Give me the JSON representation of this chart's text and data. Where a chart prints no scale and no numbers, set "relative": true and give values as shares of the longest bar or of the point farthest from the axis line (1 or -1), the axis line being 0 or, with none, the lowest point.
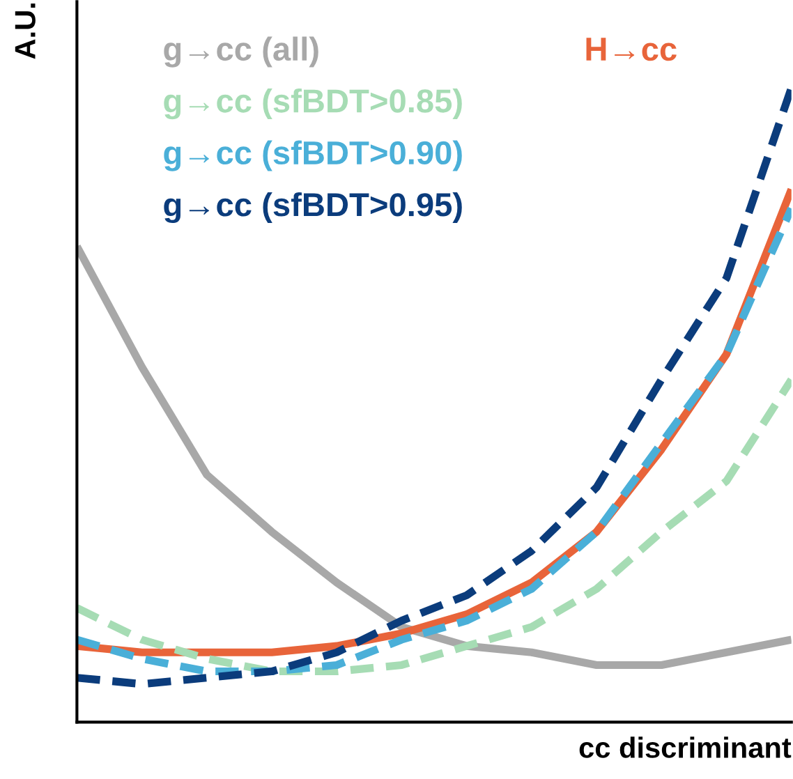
{
  "chart_data": {
    "type": "line",
    "relative": true,
    "xlabel": "cc discriminant",
    "ylabel": "A.U.",
    "categories": [
      null,
      null,
      null,
      null,
      null,
      null,
      null,
      null,
      null,
      null,
      null,
      null
    ],
    "series": [
      {
        "name": "g→cc (all)",
        "color": "#a8a8a8",
        "line_style": "solid",
        "values": [
          0.75,
          0.56,
          0.39,
          0.3,
          0.22,
          0.15,
          0.12,
          0.11,
          0.09,
          0.09,
          0.11,
          0.13
        ]
      },
      {
        "name": "H→cc",
        "color": "#e8643a",
        "line_style": "solid",
        "values": [
          0.12,
          0.11,
          0.11,
          0.11,
          0.12,
          0.14,
          0.17,
          0.22,
          0.3,
          0.43,
          0.58,
          0.84
        ]
      },
      {
        "name": "g→cc (sfBDT>0.85)",
        "color": "#a6dcb4",
        "line_style": "dashed",
        "values": [
          0.18,
          0.13,
          0.1,
          0.08,
          0.08,
          0.09,
          0.12,
          0.15,
          0.21,
          0.3,
          0.38,
          0.54
        ]
      },
      {
        "name": "g→cc (sfBDT>0.90)",
        "color": "#4aafd8",
        "line_style": "dashed",
        "values": [
          0.13,
          0.1,
          0.08,
          0.08,
          0.09,
          0.13,
          0.16,
          0.21,
          0.3,
          0.44,
          0.58,
          0.81
        ]
      },
      {
        "name": "g→cc (sfBDT>0.95)",
        "color": "#0b3c7c",
        "line_style": "dashed",
        "values": [
          0.07,
          0.06,
          0.07,
          0.08,
          0.11,
          0.16,
          0.2,
          0.27,
          0.37,
          0.54,
          0.7,
          1
        ]
      }
    ]
  }
}
